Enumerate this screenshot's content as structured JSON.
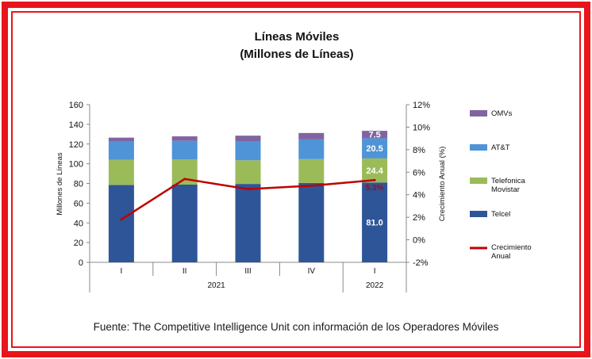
{
  "chart_data": {
    "type": "bar",
    "title": "Líneas Móviles",
    "subtitle": "(Millones de Líneas)",
    "ylabel": "Millones de Líneas",
    "y2label": "Crecimiento Anual (%)",
    "ylim": [
      0,
      160
    ],
    "y_ticks": [
      "0",
      "20",
      "40",
      "60",
      "80",
      "100",
      "120",
      "140",
      "160"
    ],
    "y2lim": [
      -2,
      12
    ],
    "y2_ticks": [
      "-2%",
      "0%",
      "2%",
      "4%",
      "6%",
      "8%",
      "10%",
      "12%"
    ],
    "categories": [
      "I",
      "II",
      "III",
      "IV",
      "I"
    ],
    "year_labels": [
      "2021",
      "2022"
    ],
    "stacked": true,
    "series": [
      {
        "name": "Telcel",
        "color": "#2e5597",
        "values": [
          78.5,
          78.8,
          79.5,
          80.5,
          81.0
        ],
        "labels": [
          "",
          "",
          "",
          "",
          "81.0"
        ]
      },
      {
        "name": "Telefonica Movistar",
        "color": "#9bbb59",
        "values": [
          25.5,
          25.5,
          24.0,
          24.2,
          24.4
        ],
        "labels": [
          "",
          "",
          "",
          "",
          "24.4"
        ]
      },
      {
        "name": "AT&T",
        "color": "#4f94d6",
        "values": [
          19.0,
          19.0,
          19.5,
          20.0,
          20.5
        ],
        "labels": [
          "",
          "",
          "",
          "",
          "20.5"
        ]
      },
      {
        "name": "OMVs",
        "color": "#8064a2",
        "values": [
          3.5,
          4.5,
          5.5,
          6.5,
          7.5
        ],
        "labels": [
          "",
          "",
          "",
          "",
          "7.5"
        ]
      }
    ],
    "line": {
      "name": "Crecimiento Anual",
      "color": "#c00000",
      "axis": "y2",
      "values": [
        1.8,
        5.4,
        4.5,
        4.8,
        5.3
      ],
      "labels": [
        "",
        "",
        "",
        "",
        "5.3%"
      ]
    },
    "legend_position": "right",
    "grid": false
  },
  "source": "Fuente: The Competitive Intelligence Unit con información de los Operadores Móviles"
}
